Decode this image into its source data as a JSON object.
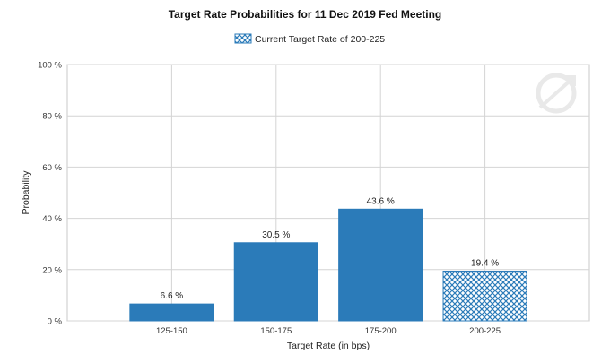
{
  "chart_data": {
    "type": "bar",
    "title": "Target Rate Probabilities for 11 Dec 2019 Fed Meeting",
    "xlabel": "Target Rate (in bps)",
    "ylabel": "Probability",
    "categories": [
      "125-150",
      "150-175",
      "175-200",
      "200-225"
    ],
    "values": [
      6.6,
      30.5,
      43.6,
      19.4
    ],
    "data_labels": [
      "6.6 %",
      "30.5 %",
      "43.6 %",
      "19.4 %"
    ],
    "ylim": [
      0,
      100
    ],
    "yticks": [
      0,
      20,
      40,
      60,
      80,
      100
    ],
    "ytick_labels": [
      "0 %",
      "20 %",
      "40 %",
      "60 %",
      "80 %",
      "100 %"
    ],
    "grid": true,
    "legend_placement": "top-center",
    "legend": [
      {
        "label": "Current Target Rate of 200-225",
        "category": "200-225",
        "pattern": "crosshatch"
      }
    ],
    "bar_color": "#2b7bb9",
    "highlight_category": "200-225"
  }
}
